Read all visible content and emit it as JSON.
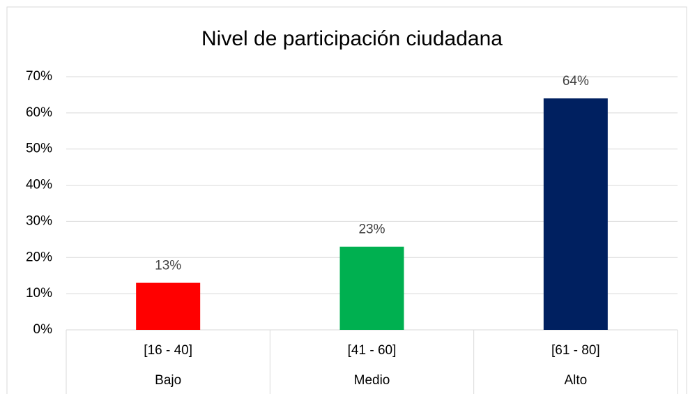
{
  "chart_data": {
    "type": "bar",
    "title": "Nivel de participación ciudadana",
    "categories": [
      "[16 - 40]",
      "[41 - 60]",
      "[61 - 80]"
    ],
    "groups": [
      "Bajo",
      "Medio",
      "Alto"
    ],
    "values": [
      13,
      23,
      64
    ],
    "value_labels": [
      "13%",
      "23%",
      "64%"
    ],
    "colors": [
      "#ff0000",
      "#00b050",
      "#002060"
    ],
    "ylim": [
      0,
      70
    ],
    "yticks": [
      {
        "value": 0,
        "label": "0%"
      },
      {
        "value": 10,
        "label": "10%"
      },
      {
        "value": 20,
        "label": "20%"
      },
      {
        "value": 30,
        "label": "30%"
      },
      {
        "value": 40,
        "label": "40%"
      },
      {
        "value": 50,
        "label": "50%"
      },
      {
        "value": 60,
        "label": "60%"
      },
      {
        "value": 70,
        "label": "70%"
      }
    ],
    "grid": true
  }
}
